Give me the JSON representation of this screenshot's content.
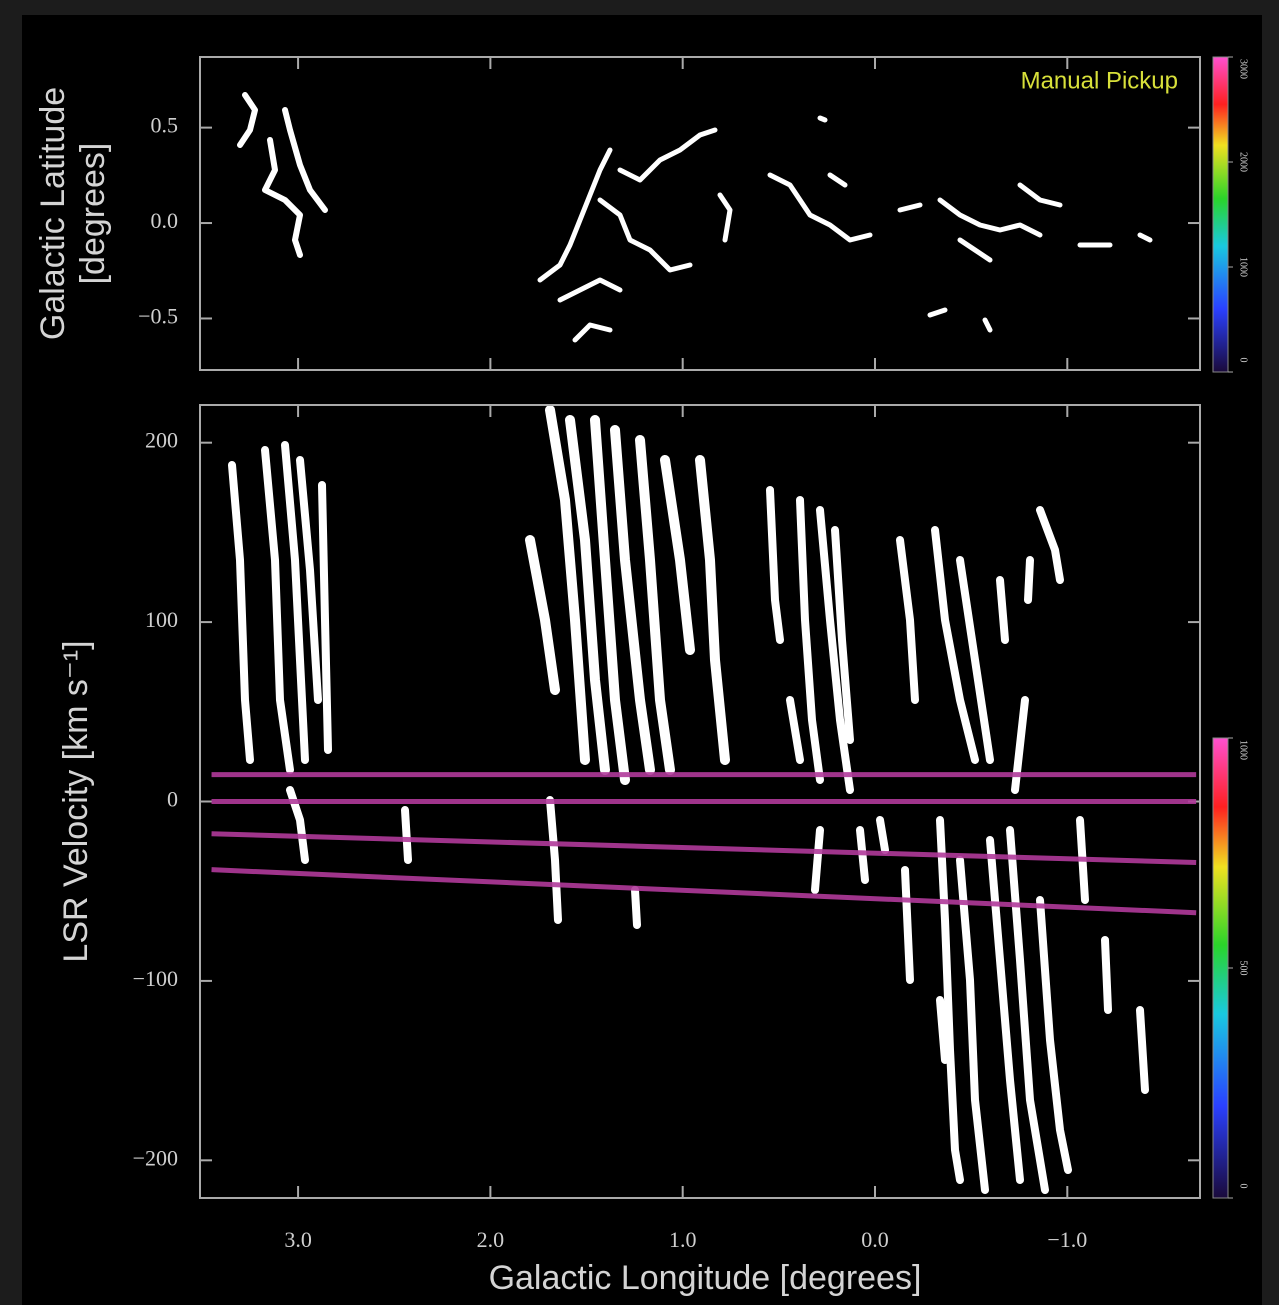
{
  "chart_data": [
    {
      "type": "image",
      "ylabel": [
        "Galactic Latitude",
        "[degrees]"
      ],
      "annotation": "Manual Pickup",
      "xlim": [
        3.51,
        -1.69
      ],
      "ylim": [
        -0.77,
        0.87
      ],
      "yticks": [
        0.5,
        {
          "value": 0,
          "label": "0.0"
        },
        {
          "value": -0.5,
          "label": "−0.5"
        }
      ],
      "colorbar": {
        "lim": [
          0,
          3000
        ],
        "ticks": [
          0,
          1000,
          2000,
          3000
        ]
      }
    },
    {
      "type": "line",
      "xlabel": "Galactic Longitude  [degrees]",
      "ylabel": "LSR Velocity  [km s⁻¹]",
      "xlim": [
        3.51,
        -1.69
      ],
      "ylim": [
        -221,
        221
      ],
      "xticks": [
        {
          "value": 3,
          "label": "3.0"
        },
        {
          "value": 2,
          "label": "2.0"
        },
        {
          "value": 1,
          "label": "1.0"
        },
        {
          "value": 0,
          "label": "0.0"
        },
        {
          "value": -1,
          "label": "−1.0"
        }
      ],
      "yticks": [
        200,
        100,
        0,
        {
          "value": -100,
          "label": "−100"
        },
        {
          "value": -200,
          "label": "−200"
        }
      ],
      "x": [
        3.45,
        -1.67
      ],
      "series": [
        {
          "color": "#b03a9a",
          "values": [
            15,
            15
          ]
        },
        {
          "color": "#b03a9a",
          "values": [
            0,
            0
          ]
        },
        {
          "color": "#b03a9a",
          "values": [
            -18,
            -34
          ]
        },
        {
          "color": "#b03a9a",
          "values": [
            -38,
            -62
          ]
        }
      ],
      "colorbar": {
        "lim": [
          0,
          1000
        ],
        "ticks": [
          0,
          500,
          1000
        ]
      }
    }
  ]
}
